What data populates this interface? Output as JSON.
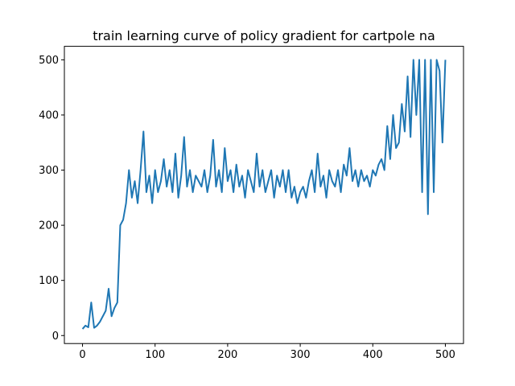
{
  "chart_data": {
    "type": "line",
    "title": "train learning curve of policy gradient for cartpole na",
    "x": [
      0,
      4,
      8,
      12,
      16,
      20,
      24,
      28,
      32,
      36,
      40,
      44,
      48,
      52,
      56,
      60,
      64,
      68,
      72,
      76,
      80,
      84,
      88,
      92,
      96,
      100,
      104,
      108,
      112,
      116,
      120,
      124,
      128,
      132,
      136,
      140,
      144,
      148,
      152,
      156,
      160,
      164,
      168,
      172,
      176,
      180,
      184,
      188,
      192,
      196,
      200,
      204,
      208,
      212,
      216,
      220,
      224,
      228,
      232,
      236,
      240,
      244,
      248,
      252,
      256,
      260,
      264,
      268,
      272,
      276,
      280,
      284,
      288,
      292,
      296,
      300,
      304,
      308,
      312,
      316,
      320,
      324,
      328,
      332,
      336,
      340,
      344,
      348,
      352,
      356,
      360,
      364,
      368,
      372,
      376,
      380,
      384,
      388,
      392,
      396,
      400,
      404,
      408,
      412,
      416,
      420,
      424,
      428,
      432,
      436,
      440,
      444,
      448,
      452,
      456,
      460,
      464,
      468,
      472,
      476,
      480,
      484,
      488,
      492,
      496,
      500
    ],
    "values": [
      12,
      18,
      15,
      60,
      14,
      18,
      25,
      35,
      45,
      85,
      35,
      50,
      60,
      200,
      210,
      240,
      300,
      250,
      280,
      240,
      300,
      370,
      260,
      290,
      240,
      300,
      260,
      280,
      320,
      270,
      300,
      260,
      330,
      250,
      290,
      360,
      270,
      300,
      260,
      290,
      280,
      270,
      300,
      260,
      290,
      355,
      270,
      300,
      260,
      340,
      280,
      300,
      260,
      310,
      270,
      290,
      250,
      300,
      280,
      260,
      330,
      270,
      300,
      260,
      280,
      300,
      250,
      290,
      270,
      300,
      260,
      300,
      250,
      270,
      240,
      260,
      270,
      250,
      280,
      300,
      260,
      330,
      270,
      290,
      250,
      300,
      280,
      270,
      300,
      260,
      310,
      290,
      340,
      280,
      300,
      270,
      300,
      280,
      290,
      270,
      300,
      290,
      310,
      320,
      300,
      380,
      320,
      400,
      340,
      350,
      420,
      370,
      470,
      360,
      500,
      400,
      500,
      260,
      500,
      220,
      500,
      260,
      500,
      480,
      350,
      500
    ],
    "color": "#1f77b4",
    "xlim": [
      -25,
      525
    ],
    "ylim": [
      -14.5,
      524.5
    ],
    "xticks": [
      0,
      100,
      200,
      300,
      400,
      500
    ],
    "yticks": [
      0,
      100,
      200,
      300,
      400,
      500
    ]
  }
}
